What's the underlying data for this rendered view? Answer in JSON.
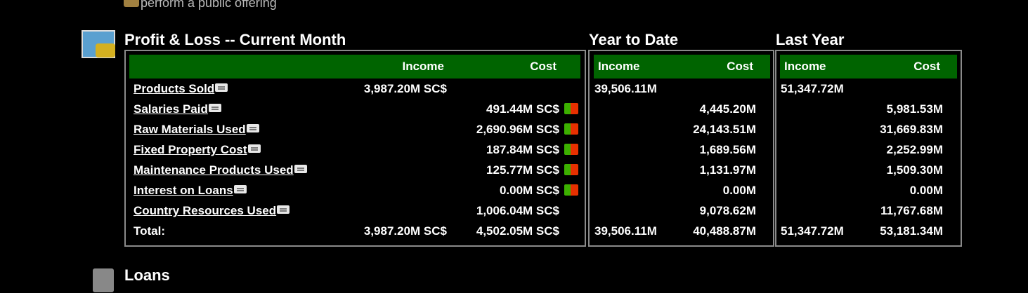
{
  "top_link": "perform a public offering",
  "sections": [
    {
      "title": "Profit & Loss -- Current Month"
    },
    {
      "title": "Year to Date"
    },
    {
      "title": "Last Year"
    }
  ],
  "columns": [
    "Income",
    "Cost"
  ],
  "rows": [
    {
      "label": "Products Sold",
      "cur_income": "3,987.20M SC$",
      "ytd_income": "39,506.11M",
      "ly_income": "51,347.72M"
    },
    {
      "label": "Salaries Paid",
      "cur_cost": "491.44M SC$",
      "ytd_cost": "4,445.20M",
      "ly_cost": "5,981.53M"
    },
    {
      "label": "Raw Materials Used",
      "cur_cost": "2,690.96M SC$",
      "ytd_cost": "24,143.51M",
      "ly_cost": "31,669.83M"
    },
    {
      "label": "Fixed Property Cost",
      "cur_cost": "187.84M SC$",
      "ytd_cost": "1,689.56M",
      "ly_cost": "2,252.99M"
    },
    {
      "label": "Maintenance Products Used",
      "cur_cost": "125.77M SC$",
      "ytd_cost": "1,131.97M",
      "ly_cost": "1,509.30M"
    },
    {
      "label": "Interest on Loans",
      "cur_cost": "0.00M SC$",
      "ytd_cost": "0.00M",
      "ly_cost": "0.00M"
    },
    {
      "label": "Country Resources Used",
      "cur_cost": "1,006.04M SC$",
      "ytd_cost": "9,078.62M",
      "ly_cost": "11,767.68M"
    }
  ],
  "total": {
    "label": "Total:",
    "cur_income": "3,987.20M SC$",
    "cur_cost": "4,502.05M SC$",
    "ytd_income": "39,506.11M",
    "ytd_cost": "40,488.87M",
    "ly_income": "51,347.72M",
    "ly_cost": "53,181.34M"
  },
  "loans_title": "Loans"
}
